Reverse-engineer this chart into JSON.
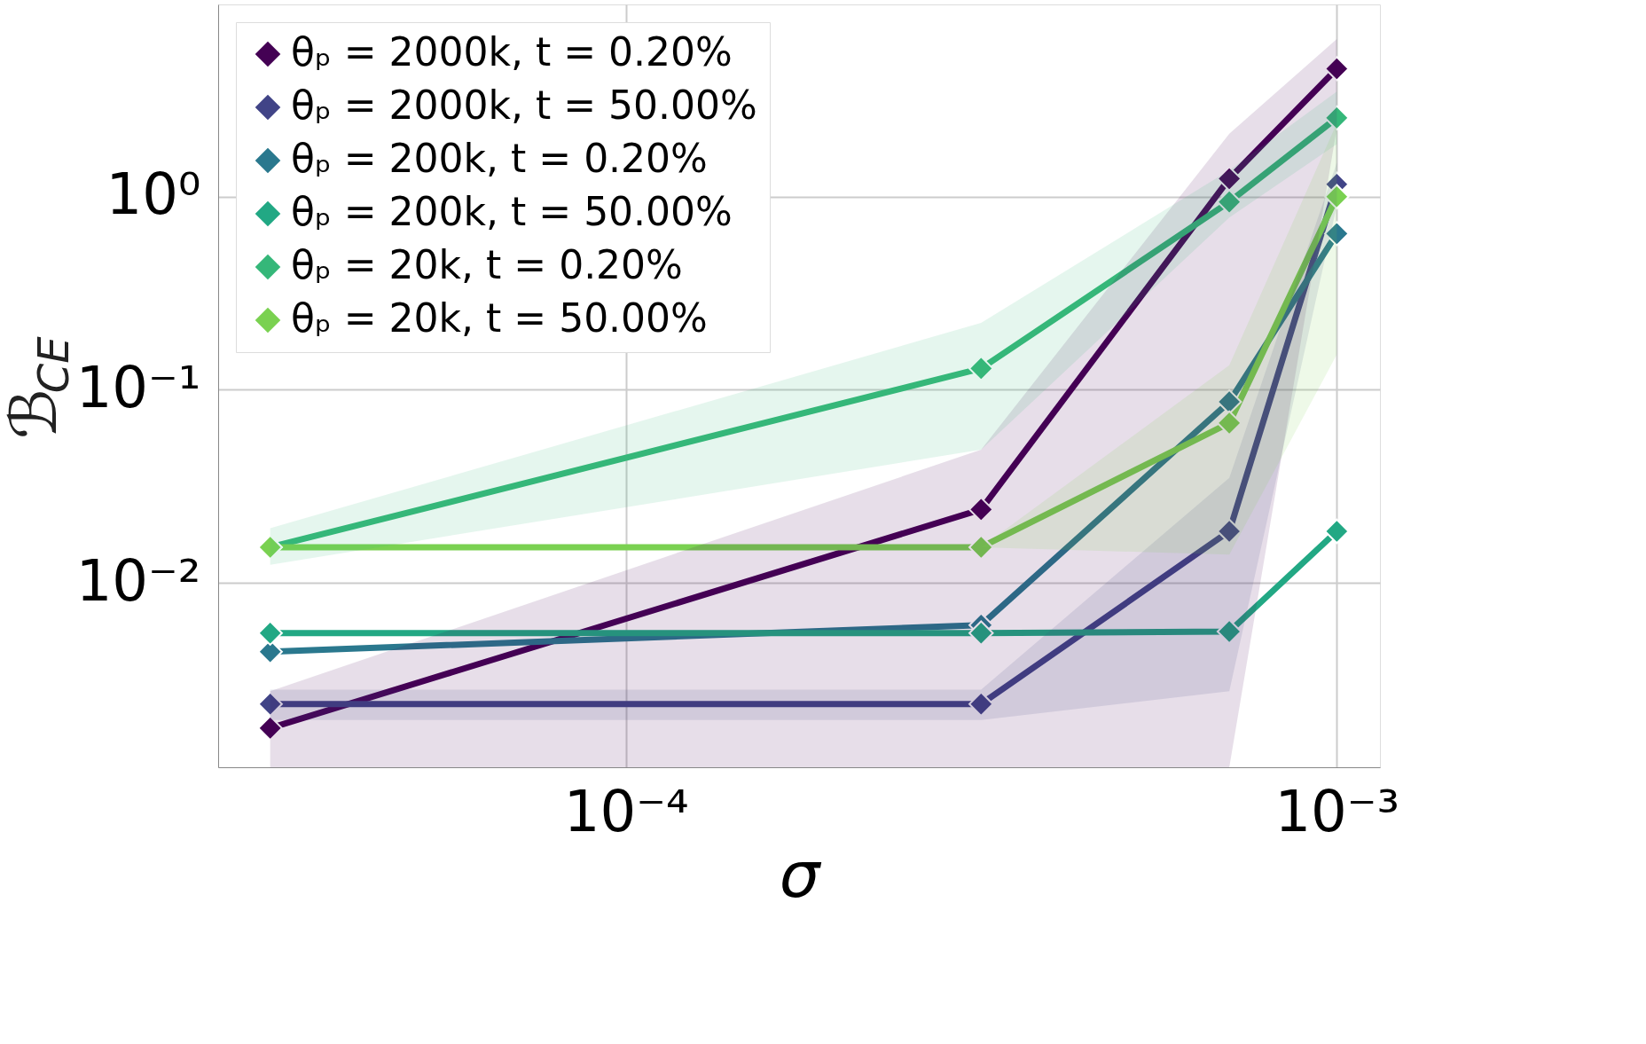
{
  "chart_data": {
    "type": "line",
    "xlabel": "σ",
    "ylabel": "ℬ$_{CE}$",
    "log": "xy",
    "grid": true,
    "legend": "top left",
    "marker": "diamond",
    "line_style": "solid",
    "x": [
      3.16e-05,
      0.000316,
      0.000706,
      0.001
    ],
    "xlim": [
      2.67e-05,
      0.00115
    ],
    "ylim": [
      0.00111,
      9.9
    ],
    "xticks": [
      {
        "value": 0.0001,
        "label": "10⁻⁴"
      },
      {
        "value": 0.001,
        "label": "10⁻³"
      }
    ],
    "yticks": [
      {
        "value": 0.01,
        "label": "10⁻²"
      },
      {
        "value": 0.1,
        "label": "10⁻¹"
      },
      {
        "value": 1,
        "label": "10⁰"
      }
    ],
    "series": [
      {
        "name": "θₚ = 2000k, t = 0.20%",
        "color": "#440154",
        "values": [
          0.00177,
          0.024,
          1.24,
          4.6
        ],
        "lower": [
          0.00111,
          0.00111,
          0.00111,
          2.26
        ],
        "upper": [
          0.00275,
          0.049,
          2.12,
          6.56
        ]
      },
      {
        "name": "θₚ = 2000k, t = 50.00%",
        "color": "#414487",
        "values": [
          0.00236,
          0.00236,
          0.0185,
          1.16
        ],
        "lower": [
          0.00195,
          0.00195,
          0.00275,
          0.9
        ],
        "upper": [
          0.0028,
          0.0028,
          0.035,
          1.5
        ]
      },
      {
        "name": "θₚ = 200k, t = 0.20%",
        "color": "#2a788e",
        "values": [
          0.0044,
          0.00605,
          0.0866,
          0.644
        ]
      },
      {
        "name": "θₚ = 200k, t = 50.00%",
        "color": "#22a884",
        "values": [
          0.0055,
          0.0055,
          0.0056,
          0.0185
        ]
      },
      {
        "name": "θₚ = 20k, t = 0.20%",
        "color": "#35b779",
        "values": [
          0.0153,
          0.129,
          0.94,
          2.56
        ],
        "lower": [
          0.0124,
          0.049,
          0.78,
          1.87
        ],
        "upper": [
          0.0192,
          0.222,
          1.37,
          3.5
        ]
      },
      {
        "name": "θₚ = 20k, t = 50.00%",
        "color": "#7ad151",
        "values": [
          0.0153,
          0.0153,
          0.0673,
          1.0
        ],
        "lower": [
          null,
          0.0153,
          0.014,
          0.152
        ],
        "upper": [
          null,
          0.0153,
          0.134,
          2.4
        ]
      }
    ]
  }
}
